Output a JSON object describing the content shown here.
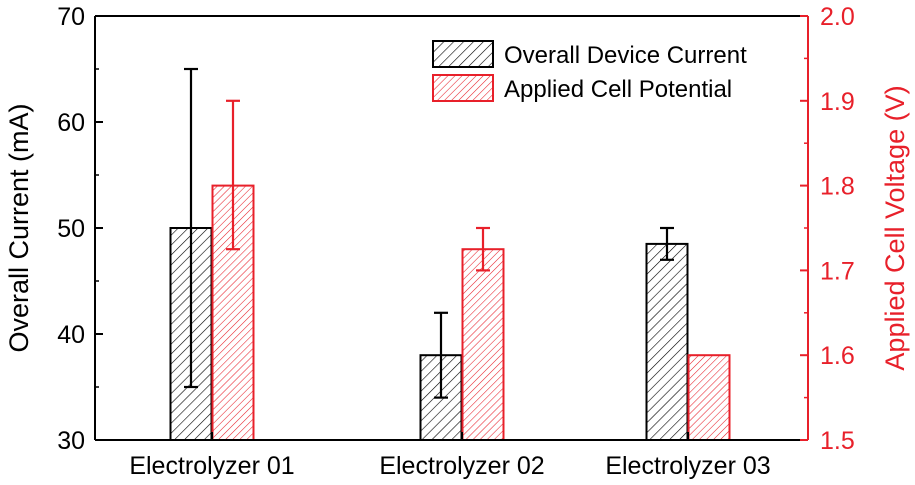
{
  "chart_data": {
    "type": "bar",
    "categories": [
      "Electrolyzer 01",
      "Electrolyzer 02",
      "Electrolyzer 03"
    ],
    "series": [
      {
        "name": "Overall Device Current",
        "axis": "left",
        "values": [
          50,
          38,
          48.5
        ],
        "errors": [
          [
            35,
            65
          ],
          [
            34,
            42
          ],
          [
            47,
            50
          ]
        ],
        "color": "#000000"
      },
      {
        "name": "Applied Cell Potential",
        "axis": "right",
        "values": [
          1.8,
          1.725,
          1.6
        ],
        "errors": [
          [
            1.725,
            1.9
          ],
          [
            1.7,
            1.75
          ],
          null
        ],
        "color": "#e8202a"
      }
    ],
    "ylabel_left": "Overall Current (mA)",
    "ylabel_right": "Applied Cell Voltage (V)",
    "ylim_left": [
      30,
      70
    ],
    "ylim_right": [
      1.5,
      2.0
    ],
    "yticks_left": [
      "30",
      "40",
      "50",
      "60",
      "70"
    ],
    "yticks_right": [
      "1.5",
      "1.6",
      "1.7",
      "1.8",
      "1.9",
      "2.0"
    ],
    "legend_position": "top-right",
    "grid": false,
    "pattern": "hatched"
  }
}
